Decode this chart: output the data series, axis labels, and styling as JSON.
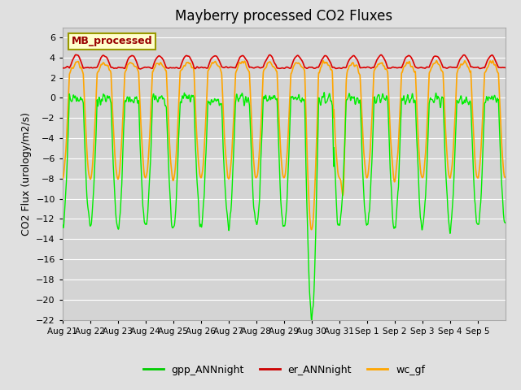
{
  "title": "Mayberry processed CO2 Fluxes",
  "ylabel": "CO2 Flux (urology/m2/s)",
  "ylim": [
    -22,
    7
  ],
  "yticks": [
    -22,
    -20,
    -18,
    -16,
    -14,
    -12,
    -10,
    -8,
    -6,
    -4,
    -2,
    0,
    2,
    4,
    6
  ],
  "bg_color": "#e8e8e8",
  "plot_bg_color": "#d8d8d8",
  "legend_label": "MB_processed",
  "legend_bg": "#ffffcc",
  "legend_border": "#cccc00",
  "series": [
    "gpp_ANNnight",
    "er_ANNnight",
    "wc_gf"
  ],
  "colors": [
    "#00ee00",
    "#dd0000",
    "#ffa500"
  ],
  "linewidths": [
    1.0,
    1.2,
    1.2
  ],
  "n_days": 16,
  "n_points": 1600,
  "xtick_labels": [
    "Aug 21",
    "Aug 22",
    "Aug 23",
    "Aug 24",
    "Aug 25",
    "Aug 26",
    "Aug 27",
    "Aug 28",
    "Aug 29",
    "Aug 30",
    "Aug 31",
    "Sep 1",
    "Sep 2",
    "Sep 3",
    "Sep 4",
    "Sep 5"
  ],
  "legend_colors": [
    "#00cc00",
    "#cc0000",
    "#ffa500"
  ],
  "legend_linewidths": [
    2.0,
    2.0,
    2.0
  ],
  "figsize": [
    6.4,
    4.8
  ],
  "dpi": 100
}
